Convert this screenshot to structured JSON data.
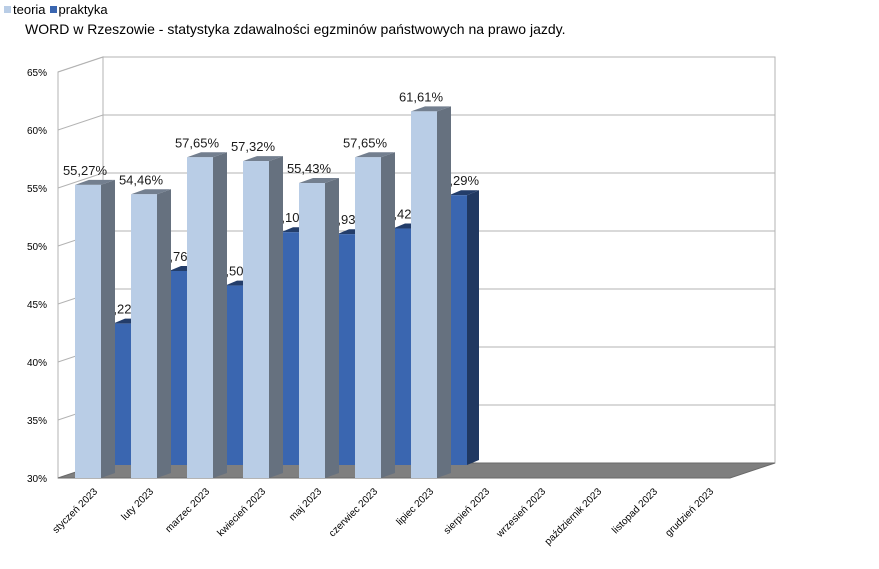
{
  "chart_data": {
    "type": "bar",
    "title": "WORD w Rzeszowie - statystyka zdawalności egzminów państwowych na prawo jazdy.",
    "categories": [
      "styczeń 2023",
      "luty 2023",
      "marzec 2023",
      "kwiecień 2023",
      "maj 2023",
      "czerwiec 2023",
      "lipiec 2023",
      "sierpień 2023",
      "wrzesień 2023",
      "październik 2023",
      "listopad 2023",
      "grudzień 2023"
    ],
    "series": [
      {
        "name": "teoria",
        "color": "#b9cde6",
        "values": [
          55.27,
          54.46,
          57.65,
          57.32,
          55.43,
          57.65,
          61.61,
          null,
          null,
          null,
          null,
          null
        ],
        "labels": [
          "55,27%",
          "54,46%",
          "57,65%",
          "57,32%",
          "55,43%",
          "57,65%",
          "61,61%",
          "",
          "",
          "",
          "",
          ""
        ]
      },
      {
        "name": "praktyka",
        "color": "#3a66b0",
        "values": [
          43.22,
          47.76,
          46.5,
          51.1,
          50.93,
          51.42,
          54.29,
          null,
          null,
          null,
          null,
          null
        ],
        "labels": [
          "43,22%",
          "47,76%",
          "46,50%",
          "51,10%",
          "50,93%",
          "51,42%",
          "54,29%",
          "",
          "",
          "",
          "",
          ""
        ]
      }
    ],
    "ylim": [
      30,
      65
    ],
    "yticks": [
      "30%",
      "35%",
      "40%",
      "45%",
      "50%",
      "55%",
      "60%",
      "65%"
    ],
    "grid": true,
    "legend": "top-left"
  }
}
